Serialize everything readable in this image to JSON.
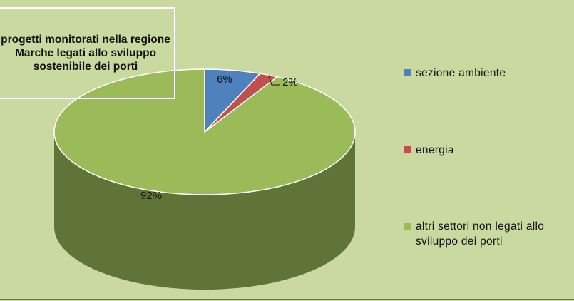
{
  "chart_data": {
    "type": "pie3d",
    "title": "progetti monitorati nella regione Marche legati allo sviluppo sostenibile dei porti",
    "categories": [
      "sezione ambiente",
      "energia",
      "altri settori non legati allo sviluppo dei porti"
    ],
    "values": [
      6,
      2,
      92
    ],
    "value_labels": [
      "6%",
      "2%",
      "92%"
    ],
    "colors": [
      "#4f81bd",
      "#c0504d",
      "#9bbb59"
    ],
    "legend": "right"
  }
}
